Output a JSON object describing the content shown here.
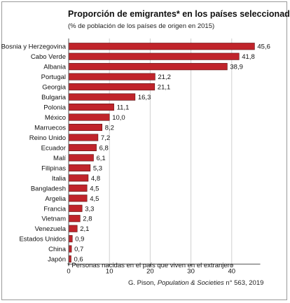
{
  "chart_data": {
    "type": "bar",
    "orientation": "horizontal",
    "title": "Proporción de emigrantes* en los países seleccionados",
    "subtitle": "(% de población de los países de origen en 2015)",
    "categories": [
      "Bosnia y Herzegovina",
      "Cabo Verde",
      "Albania",
      "Portugal",
      "Georgia",
      "Bulgaria",
      "Polonia",
      "México",
      "Marruecos",
      "Reino Unido",
      "Ecuador",
      "Malí",
      "Filipinas",
      "Italia",
      "Bangladesh",
      "Argelia",
      "Francia",
      "Vietnam",
      "Venezuela",
      "Estados Unidos",
      "China",
      "Japón"
    ],
    "values": [
      45.6,
      41.8,
      38.9,
      21.2,
      21.1,
      16.3,
      11.1,
      10.0,
      8.2,
      7.2,
      6.8,
      6.1,
      5.3,
      4.8,
      4.5,
      4.5,
      3.3,
      2.8,
      2.1,
      0.9,
      0.7,
      0.6
    ],
    "value_labels": [
      "45,6",
      "41,8",
      "38,9",
      "21,2",
      "21,1",
      "16,3",
      "11,1",
      "10,0",
      "8,2",
      "7,2",
      "6,8",
      "6,1",
      "5,3",
      "4,8",
      "4,5",
      "4,5",
      "3,3",
      "2,8",
      "2,1",
      "0,9",
      "0,7",
      "0,6"
    ],
    "xlim": [
      0,
      47
    ],
    "x_ticks": [
      0,
      10,
      20,
      30,
      40
    ],
    "grid": true,
    "bar_color": "#c0242b",
    "footnote": "* Personas nacidas en el país que viven en el extranjero",
    "source_prefix": "G. Pison, ",
    "source_journal": "Population & Societies",
    "source_suffix": " n° 563, 2019"
  }
}
